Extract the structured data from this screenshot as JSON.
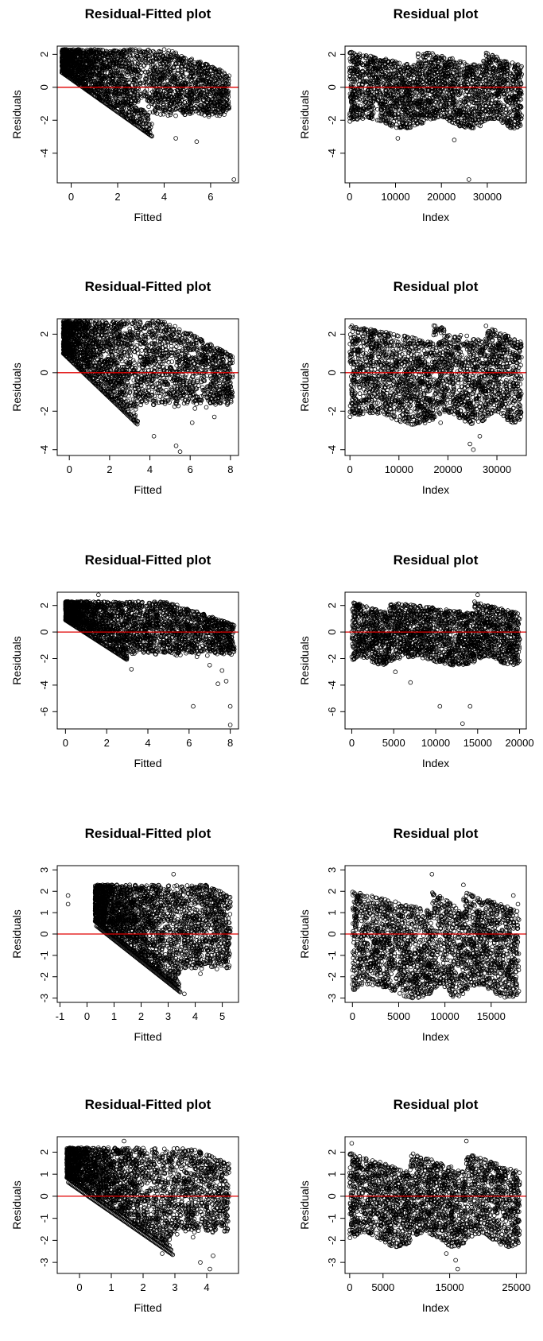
{
  "chart_data": [
    {
      "type": "scatter",
      "title": "Residual-Fitted plot",
      "xlabel": "Fitted",
      "ylabel": "Residuals",
      "xlim": [
        -0.6,
        7.2
      ],
      "ylim": [
        -5.8,
        2.5
      ],
      "xticks": [
        0,
        2,
        4,
        6
      ],
      "yticks": [
        -4,
        -2,
        0,
        2
      ],
      "reference_line": {
        "y": 0,
        "color": "#e00000"
      },
      "cloud": {
        "kind": "fitted",
        "xmin": -0.4,
        "xmax": 6.8,
        "lower_slope": -1,
        "lower_intercept": 0.9,
        "lower_stop": 3.5,
        "upper": 2.3,
        "taper_start": 4.2
      },
      "points": [
        [
          7.0,
          -5.6
        ],
        [
          5.4,
          -3.3
        ],
        [
          4.5,
          -3.1
        ],
        [
          6.5,
          -0.8
        ],
        [
          6.8,
          0.7
        ],
        [
          5.8,
          -1.5
        ]
      ]
    },
    {
      "type": "scatter",
      "title": "Residual plot",
      "xlabel": "Index",
      "ylabel": "Residuals",
      "xlim": [
        -1000,
        38500
      ],
      "ylim": [
        -5.8,
        2.5
      ],
      "xticks": [
        0,
        10000,
        20000,
        30000
      ],
      "yticks": [
        -4,
        -2,
        0,
        2
      ],
      "reference_line": {
        "y": 0,
        "color": "#e00000"
      },
      "cloud": {
        "kind": "index",
        "xmax": 37500,
        "upper": 2.2,
        "lower": -2.2,
        "breaks": [
          14800,
          16000,
          29000
        ]
      },
      "points": [
        [
          10500,
          -3.1
        ],
        [
          22800,
          -3.2
        ],
        [
          26000,
          -5.6
        ],
        [
          14200,
          -2.3
        ]
      ]
    },
    {
      "type": "scatter",
      "title": "Residual-Fitted plot",
      "xlabel": "Fitted",
      "ylabel": "Residuals",
      "xlim": [
        -0.6,
        8.4
      ],
      "ylim": [
        -4.3,
        2.8
      ],
      "xticks": [
        0,
        2,
        4,
        6,
        8
      ],
      "yticks": [
        -4,
        -2,
        0,
        2
      ],
      "reference_line": {
        "y": 0,
        "color": "#e00000"
      },
      "cloud": {
        "kind": "fitted",
        "xmin": -0.3,
        "xmax": 8.1,
        "lower_slope": -1,
        "lower_intercept": 1.0,
        "lower_stop": 3.4,
        "upper": 2.7,
        "taper_start": 4.8
      },
      "points": [
        [
          5.3,
          -3.8
        ],
        [
          5.5,
          -4.1
        ],
        [
          4.2,
          -3.3
        ],
        [
          6.1,
          -2.6
        ],
        [
          7.2,
          -2.3
        ],
        [
          7.8,
          -1.2
        ],
        [
          6.8,
          -1.8
        ]
      ]
    },
    {
      "type": "scatter",
      "title": "Residual plot",
      "xlabel": "Index",
      "ylabel": "Residuals",
      "xlim": [
        -1000,
        36000
      ],
      "ylim": [
        -4.3,
        2.8
      ],
      "xticks": [
        0,
        10000,
        20000,
        30000
      ],
      "yticks": [
        -4,
        -2,
        0,
        2
      ],
      "reference_line": {
        "y": 0,
        "color": "#e00000"
      },
      "cloud": {
        "kind": "index",
        "xmax": 35000,
        "upper": 2.5,
        "lower": -2.4,
        "breaks": [
          17000,
          27500
        ]
      },
      "points": [
        [
          24500,
          -3.7
        ],
        [
          25200,
          -4.0
        ],
        [
          26500,
          -3.3
        ],
        [
          18500,
          -2.6
        ],
        [
          9000,
          -2.3
        ]
      ]
    },
    {
      "type": "scatter",
      "title": "Residual-Fitted plot",
      "xlabel": "Fitted",
      "ylabel": "Residuals",
      "xlim": [
        -0.4,
        8.4
      ],
      "ylim": [
        -7.3,
        3.0
      ],
      "xticks": [
        0,
        2,
        4,
        6,
        8
      ],
      "yticks": [
        -6,
        -4,
        -2,
        0,
        2
      ],
      "reference_line": {
        "y": 0,
        "color": "#e00000"
      },
      "cloud": {
        "kind": "fitted",
        "xmin": 0.0,
        "xmax": 8.2,
        "lower_slope": -1,
        "lower_intercept": 0.9,
        "lower_stop": 3.0,
        "upper": 2.3,
        "taper_start": 5.0
      },
      "points": [
        [
          8.0,
          -7.0
        ],
        [
          8.0,
          -5.6
        ],
        [
          6.2,
          -5.6
        ],
        [
          7.8,
          -3.7
        ],
        [
          7.4,
          -3.9
        ],
        [
          7.0,
          -2.5
        ],
        [
          7.6,
          -2.9
        ],
        [
          3.2,
          -2.8
        ],
        [
          1.6,
          2.8
        ]
      ]
    },
    {
      "type": "scatter",
      "title": "Residual plot",
      "xlabel": "Index",
      "ylabel": "Residuals",
      "xlim": [
        -800,
        20800
      ],
      "ylim": [
        -7.3,
        3.0
      ],
      "xticks": [
        0,
        5000,
        10000,
        15000,
        20000
      ],
      "yticks": [
        -6,
        -4,
        -2,
        0,
        2
      ],
      "reference_line": {
        "y": 0,
        "color": "#e00000"
      },
      "cloud": {
        "kind": "index",
        "xmax": 20000,
        "upper": 2.3,
        "lower": -2.2,
        "breaks": [
          4500,
          14600
        ]
      },
      "points": [
        [
          10500,
          -5.6
        ],
        [
          13200,
          -6.9
        ],
        [
          14100,
          -5.6
        ],
        [
          7000,
          -3.8
        ],
        [
          5200,
          -3.0
        ],
        [
          15000,
          2.8
        ]
      ]
    },
    {
      "type": "scatter",
      "title": "Residual-Fitted plot",
      "xlabel": "Fitted",
      "ylabel": "Residuals",
      "xlim": [
        -1.1,
        5.6
      ],
      "ylim": [
        -3.2,
        3.2
      ],
      "xticks": [
        -1,
        0,
        1,
        2,
        3,
        4,
        5
      ],
      "yticks": [
        -3,
        -2,
        -1,
        0,
        1,
        2,
        3
      ],
      "reference_line": {
        "y": 0,
        "color": "#e00000"
      },
      "cloud": {
        "kind": "fitted",
        "xmin": 0.3,
        "xmax": 5.3,
        "lower_slope": -1,
        "lower_intercept": 0.6,
        "lower_stop": 3.4,
        "upper": 2.3,
        "taper_start": 4.4,
        "band": true
      },
      "points": [
        [
          -0.7,
          1.8
        ],
        [
          -0.7,
          1.4
        ],
        [
          3.2,
          2.8
        ],
        [
          5.0,
          -1.0
        ],
        [
          3.6,
          -2.8
        ]
      ]
    },
    {
      "type": "scatter",
      "title": "Residual plot",
      "xlabel": "Index",
      "ylabel": "Residuals",
      "xlim": [
        -800,
        18800
      ],
      "ylim": [
        -3.2,
        3.2
      ],
      "xticks": [
        0,
        5000,
        10000,
        15000
      ],
      "yticks": [
        -3,
        -2,
        -1,
        0,
        1,
        2,
        3
      ],
      "reference_line": {
        "y": 0,
        "color": "#e00000"
      },
      "cloud": {
        "kind": "index",
        "xmax": 18000,
        "upper": 2.0,
        "lower": -2.7,
        "breaks": [
          8600,
          12000
        ]
      },
      "points": [
        [
          8600,
          2.8
        ],
        [
          17400,
          1.8
        ],
        [
          17900,
          1.4
        ],
        [
          12000,
          2.3
        ]
      ]
    },
    {
      "type": "scatter",
      "title": "Residual-Fitted plot",
      "xlabel": "Fitted",
      "ylabel": "Residuals",
      "xlim": [
        -0.7,
        5.0
      ],
      "ylim": [
        -3.5,
        2.7
      ],
      "xticks": [
        0,
        1,
        2,
        3,
        4
      ],
      "yticks": [
        -3,
        -2,
        -1,
        0,
        1,
        2
      ],
      "reference_line": {
        "y": 0,
        "color": "#e00000"
      },
      "cloud": {
        "kind": "fitted",
        "xmin": -0.4,
        "xmax": 4.7,
        "lower_slope": -1,
        "lower_intercept": 0.85,
        "lower_stop": 2.9,
        "upper": 2.2,
        "taper_start": 3.5,
        "band": true
      },
      "points": [
        [
          4.1,
          -3.3
        ],
        [
          3.8,
          -3.0
        ],
        [
          4.2,
          -2.7
        ],
        [
          1.4,
          2.5
        ],
        [
          2.6,
          -2.6
        ]
      ]
    },
    {
      "type": "scatter",
      "title": "Residual plot",
      "xlabel": "Index",
      "ylabel": "Residuals",
      "xlim": [
        -700,
        26500
      ],
      "ylim": [
        -3.5,
        2.7
      ],
      "xticks": [
        0,
        5000,
        15000,
        25000
      ],
      "yticks": [
        -3,
        -2,
        -1,
        0,
        1,
        2
      ],
      "reference_line": {
        "y": 0,
        "color": "#e00000"
      },
      "cloud": {
        "kind": "index",
        "xmax": 25500,
        "upper": 2.0,
        "lower": -2.0,
        "breaks": [
          9000,
          17500
        ]
      },
      "points": [
        [
          16200,
          -3.3
        ],
        [
          15900,
          -2.9
        ],
        [
          17500,
          2.5
        ],
        [
          300,
          2.4
        ],
        [
          14500,
          -2.6
        ]
      ]
    }
  ]
}
